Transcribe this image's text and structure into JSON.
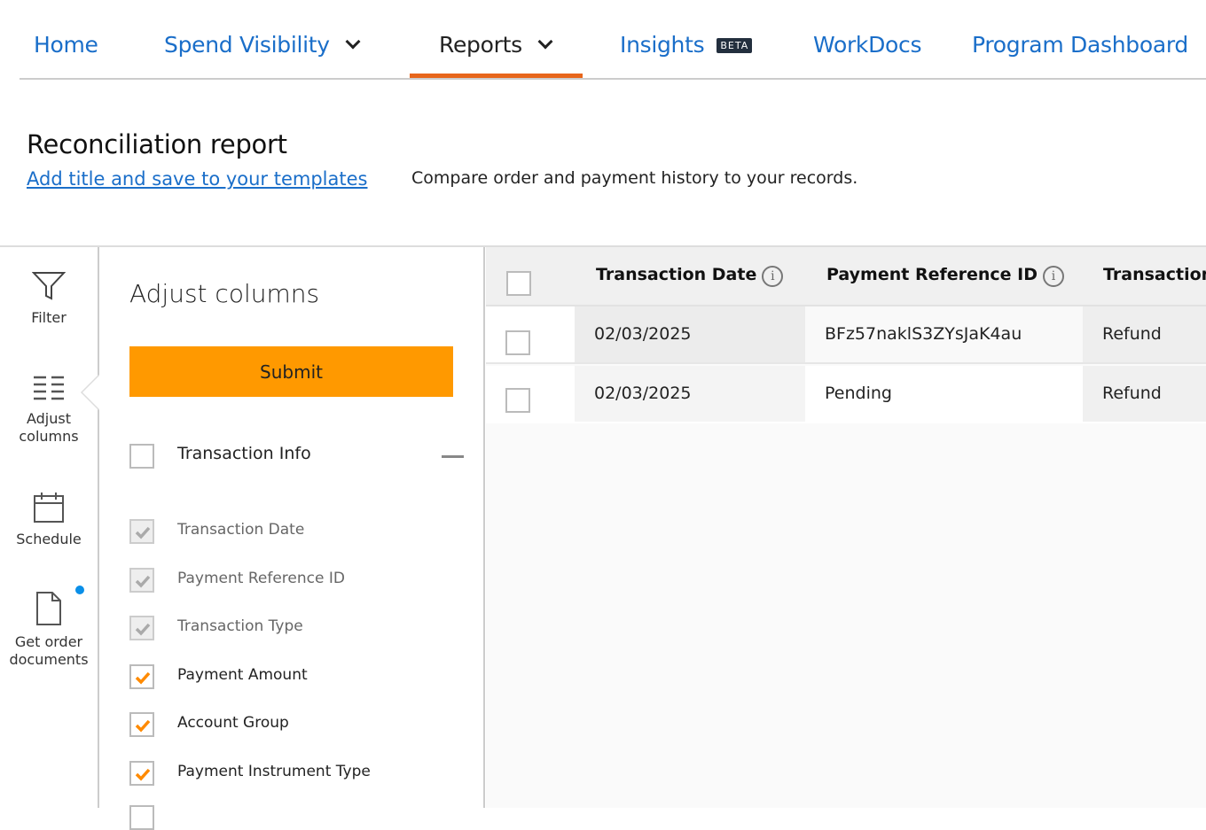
{
  "nav": {
    "items": [
      {
        "label": "Home"
      },
      {
        "label": "Spend Visibility",
        "dropdown": true
      },
      {
        "label": "Reports",
        "dropdown": true,
        "active": true
      },
      {
        "label": "Insights",
        "badge": "BETA"
      },
      {
        "label": "WorkDocs"
      },
      {
        "label": "Program Dashboard"
      }
    ]
  },
  "header": {
    "title": "Reconciliation report",
    "save_link": "Add title and save to your templates",
    "description": "Compare order and payment history to your records."
  },
  "rail": {
    "items": [
      {
        "label": "Filter",
        "icon": "filter-icon"
      },
      {
        "label": "Adjust columns",
        "icon": "columns-icon",
        "active": true
      },
      {
        "label": "Schedule",
        "icon": "calendar-icon"
      },
      {
        "label": "Get order documents",
        "icon": "document-icon",
        "notification": true
      }
    ]
  },
  "panel": {
    "title": "Adjust columns",
    "submit_label": "Submit",
    "group": {
      "label": "Transaction Info",
      "checked": false
    },
    "columns": [
      {
        "label": "Transaction Date",
        "checked": true,
        "disabled": true
      },
      {
        "label": "Payment Reference ID",
        "checked": true,
        "disabled": true
      },
      {
        "label": "Transaction Type",
        "checked": true,
        "disabled": true
      },
      {
        "label": "Payment Amount",
        "checked": true,
        "disabled": false
      },
      {
        "label": "Account Group",
        "checked": true,
        "disabled": false
      },
      {
        "label": "Payment Instrument Type",
        "checked": true,
        "disabled": false
      }
    ]
  },
  "table": {
    "headers": [
      "Transaction Date",
      "Payment Reference ID",
      "Transaction"
    ],
    "rows": [
      [
        "02/03/2025",
        "BFz57naklS3ZYsJaK4au",
        "Refund"
      ],
      [
        "02/03/2025",
        "Pending",
        "Refund"
      ]
    ]
  },
  "colors": {
    "accent": "#ff9900",
    "active_tab": "#e7661b",
    "link": "#1a6ec9"
  }
}
